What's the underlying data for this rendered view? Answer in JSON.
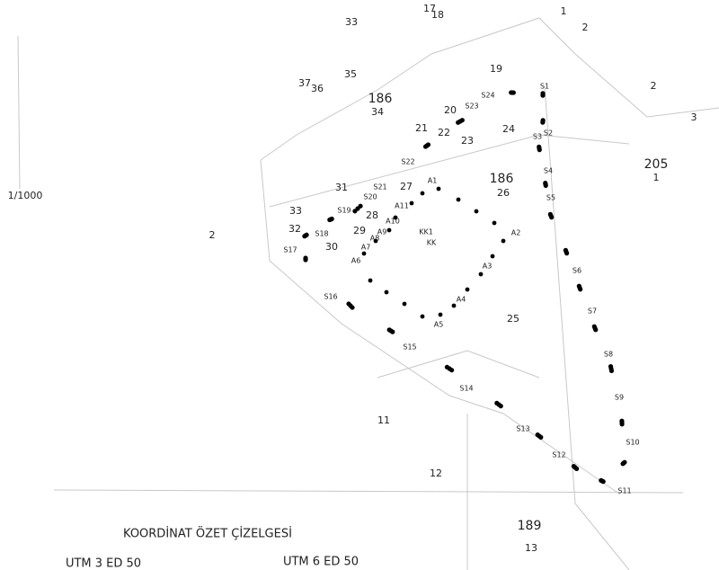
{
  "scale": "1/1000",
  "parcels": [
    "33",
    "17",
    "18",
    "1",
    "2",
    "19",
    "35",
    "37",
    "36",
    "186",
    "34",
    "20",
    "21",
    "22",
    "23",
    "24",
    "2",
    "3",
    "205",
    "1",
    "186",
    "26",
    "27",
    "31",
    "33",
    "28",
    "32",
    "29",
    "30",
    "2",
    "25",
    "11",
    "12",
    "189",
    "13"
  ],
  "boundary_points": [
    "S1",
    "S2",
    "S3",
    "S4",
    "S5",
    "S6",
    "S7",
    "S8",
    "S9",
    "S10",
    "S11",
    "S12",
    "S13",
    "S14",
    "S15",
    "S16",
    "S17",
    "S18",
    "S19",
    "S20",
    "S21",
    "S22",
    "S23",
    "S24"
  ],
  "inner_points": [
    "A1",
    "A2",
    "A3",
    "A4",
    "A5",
    "A6",
    "A7",
    "A8",
    "A9",
    "A10",
    "A11"
  ],
  "control_points": [
    "KK1",
    "KK"
  ],
  "table_title": "KOORDİNAT ÖZET ÇİZELGESİ",
  "projections": [
    "UTM 3 ED 50",
    "UTM 6 ED 50"
  ]
}
